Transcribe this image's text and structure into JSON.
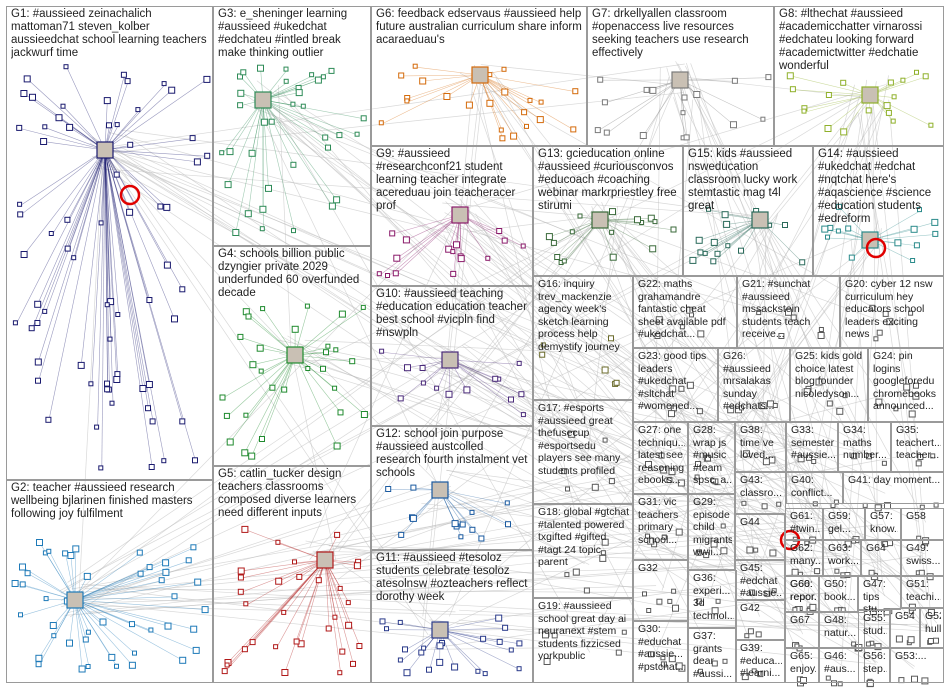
{
  "groups": [
    {
      "id": "G1",
      "label": "G1: #aussieed zeinachalich mattoman71 steven_kolber aussieedchat school learning teachers jackwurf time",
      "color": "#1a1a6e",
      "box": "g1"
    },
    {
      "id": "G2",
      "label": "G2: teacher #aussieed research wellbeing bjlarinen finished masters following joy fulfilment",
      "color": "#1e7ab8",
      "box": "g2"
    },
    {
      "id": "G3",
      "label": "G3: e_sheninger learning #aussieed #ukedchat #edchateu #intled break make thinking outlier",
      "color": "#2e8b57",
      "box": "g3"
    },
    {
      "id": "G4",
      "label": "G4: schools billion public dzyngier private 2029 underfunded 60 overfunded decade",
      "color": "#1f8a2e",
      "box": "g4"
    },
    {
      "id": "G5",
      "label": "G5: catlin_tucker design teachers classrooms composed diverse learners need different inputs",
      "color": "#b01818",
      "box": "g5"
    },
    {
      "id": "G6",
      "label": "G6: feedback edservaus #aussieed help future australian curriculum share inform acaraeduau's",
      "color": "#d46a0a",
      "box": "g6"
    },
    {
      "id": "G7",
      "label": "G7: drkellyallen classroom #openaccess live resources seeking teachers use research effectively",
      "color": "#7a7a7a",
      "box": "g7"
    },
    {
      "id": "G8",
      "label": "G8: #lthechat #aussieed #academicchatter virnarossi #edchateu looking forward #academictwitter #edchatie wonderful",
      "color": "#8fb02a",
      "box": "g8"
    },
    {
      "id": "G9",
      "label": "G9: #aussieed #researchconf21 student learning teacher integrate acereduau join teacheracer prof",
      "color": "#8a1a6a",
      "box": "g9"
    },
    {
      "id": "G10",
      "label": "G10: #aussieed teaching #education education teacher best school #vicpln find #nswpln",
      "color": "#4a2a7a",
      "box": "g10"
    },
    {
      "id": "G11",
      "label": "G11: #aussieed #tesoloz students celebrate tesoloz atesolnsw #ozteachers reflect dorothy week",
      "color": "#2a3a8a",
      "box": "g11"
    },
    {
      "id": "G12",
      "label": "G12: school join purpose #aussieed austcolled research fourth instalment vet schools",
      "color": "#1a5aa0",
      "box": "g12"
    },
    {
      "id": "G13",
      "label": "G13: gcieducation online #aussieed #curiousconvos #educoach #coaching webinar markrpriestley free stirumi",
      "color": "#3a6a3a",
      "box": "g13"
    },
    {
      "id": "G14",
      "label": "G14: #aussieed #ukedchat #edchat #nqtchat here's #aqascience #science #education students #edreform",
      "color": "#2a8a8a",
      "box": "g14"
    },
    {
      "id": "G15",
      "label": "G15: kids #aussieed nsweducation classroom lucky work stemtastic mag t4l great",
      "color": "#2a6a5a",
      "box": "g15"
    },
    {
      "id": "G16",
      "label": "G16: inquiry trev_mackenzie agency week's sketch learning process help demystify journey",
      "color": "#6a6a2a",
      "box": "g16"
    },
    {
      "id": "G17",
      "label": "G17: #esports #aussieed great thefusecup #esportsedu players see many students profiled",
      "color": "#5a5a5a",
      "box": "g17"
    },
    {
      "id": "G18",
      "label": "G18: global #gtchat #talented powered txgifted #gifted #tagt 24 topic parent",
      "color": "#5a5a5a",
      "box": "g18"
    },
    {
      "id": "G19",
      "label": "G19: #aussieed school great day ai neuranext #stem students fizzicsed yorkpublic",
      "color": "#5a5a5a",
      "box": "g19"
    },
    {
      "id": "G20",
      "label": "G20: cyber 12 nsw curriculum hey educators school leaders exciting news",
      "color": "#5a5a5a",
      "box": "g20"
    },
    {
      "id": "G21",
      "label": "G21: #sunchat #aussieed mssackstein students teach receive...",
      "color": "#5a5a5a",
      "box": "g21"
    },
    {
      "id": "G22",
      "label": "G22: maths grahamandre fantastic cheat sheet available pdf #ukedchat...",
      "color": "#5a5a5a",
      "box": "g22"
    },
    {
      "id": "G23",
      "label": "G23: good tips leaders #ukedchat #sltchat #womened...",
      "color": "#5a5a5a",
      "box": "g23"
    },
    {
      "id": "G24",
      "label": "G24: pin logins googleforedu chromebooks announced...",
      "color": "#5a5a5a",
      "box": "g24"
    },
    {
      "id": "G25",
      "label": "G25: kids gold choice latest blog founder nicoledyson...",
      "color": "#5a5a5a",
      "box": "g25"
    },
    {
      "id": "G26",
      "label": "G26: #aussieed mrsalakas sunday #edchats...",
      "color": "#5a5a5a",
      "box": "g26"
    },
    {
      "id": "G27",
      "label": "G27: one techniqu... latest see reasoning ebooks...",
      "color": "#5a5a5a",
      "box": "g27"
    },
    {
      "id": "G28",
      "label": "G28: wrap js #music #team spsc_a...",
      "color": "#5a5a5a",
      "box": "g28"
    },
    {
      "id": "G29",
      "label": "G29: episode child migrants wwii...",
      "color": "#5a5a5a",
      "box": "g29"
    },
    {
      "id": "G30",
      "label": "G30: #educhat #aussie... #pstchat...",
      "color": "#5a5a5a",
      "box": "g30"
    },
    {
      "id": "G31",
      "label": "G31: vic teachers primary school...",
      "color": "#5a5a5a",
      "box": "g31"
    },
    {
      "id": "G32",
      "label": "G32",
      "color": "#5a5a5a",
      "box": "g32"
    },
    {
      "id": "G33",
      "label": "G33: semester #aussie...",
      "color": "#5a5a5a",
      "box": "g33"
    },
    {
      "id": "G34",
      "label": "G34: maths number...",
      "color": "#5a5a5a",
      "box": "g34"
    },
    {
      "id": "G35",
      "label": "G35: teachert... teacher...",
      "color": "#5a5a5a",
      "box": "g35"
    },
    {
      "id": "G36",
      "label": "G36: experi... 3d technol...",
      "color": "#5a5a5a",
      "box": "g36"
    },
    {
      "id": "G37",
      "label": "G37: grants dear #aussi...",
      "color": "#5a5a5a",
      "box": "g37"
    },
    {
      "id": "G38",
      "label": "G38: time ve loved...",
      "color": "#5a5a5a",
      "box": "g38"
    },
    {
      "id": "G39",
      "label": "G39: #educa... #learni...",
      "color": "#5a5a5a",
      "box": "g39"
    },
    {
      "id": "G40",
      "label": "G40: conflict...",
      "color": "#5a5a5a",
      "box": "g40"
    },
    {
      "id": "G41",
      "label": "G41: day moment...",
      "color": "#5a5a5a",
      "box": "g41"
    },
    {
      "id": "G42",
      "label": "G42",
      "color": "#5a5a5a",
      "box": "g42"
    },
    {
      "id": "G43",
      "label": "G43: classro...",
      "color": "#5a5a5a",
      "box": "g43"
    },
    {
      "id": "G44",
      "label": "G44",
      "color": "#5a5a5a",
      "box": "g44"
    },
    {
      "id": "G45",
      "label": "G45: #edchat #aussie...",
      "color": "#5a5a5a",
      "box": "g45"
    },
    {
      "id": "G46",
      "label": "G46: #aus...",
      "color": "#5a5a5a",
      "box": "g46"
    },
    {
      "id": "G47",
      "label": "G47: tips stu...",
      "color": "#5a5a5a",
      "box": "g47"
    },
    {
      "id": "G48",
      "label": "G48: natur...",
      "color": "#5a5a5a",
      "box": "g48"
    },
    {
      "id": "G49",
      "label": "G49: swiss...",
      "color": "#5a5a5a",
      "box": "g49"
    },
    {
      "id": "G50",
      "label": "G50: book...",
      "color": "#5a5a5a",
      "box": "g50"
    },
    {
      "id": "G51",
      "label": "G51: teachi...",
      "color": "#5a5a5a",
      "box": "g51"
    },
    {
      "id": "G52",
      "label": "G52: hullo...",
      "color": "#5a5a5a",
      "box": "g52"
    },
    {
      "id": "G53",
      "label": "G53:...",
      "color": "#5a5a5a",
      "box": "g53"
    },
    {
      "id": "G54",
      "label": "G54",
      "color": "#5a5a5a",
      "box": "g54"
    },
    {
      "id": "G55",
      "label": "G55: stud...",
      "color": "#5a5a5a",
      "box": "g55"
    },
    {
      "id": "G56",
      "label": "G56: step...",
      "color": "#5a5a5a",
      "box": "g56"
    },
    {
      "id": "G57",
      "label": "G57: know...",
      "color": "#5a5a5a",
      "box": "g57"
    },
    {
      "id": "G58",
      "label": "G58",
      "color": "#5a5a5a",
      "box": "g58"
    },
    {
      "id": "G59",
      "label": "G59: gel...",
      "color": "#5a5a5a",
      "box": "g59"
    },
    {
      "id": "G60",
      "label": "G60: repor...",
      "color": "#5a5a5a",
      "box": "g60"
    },
    {
      "id": "G61",
      "label": "G61: #twin...",
      "color": "#5a5a5a",
      "box": "g61"
    },
    {
      "id": "G62",
      "label": "G62: many...",
      "color": "#5a5a5a",
      "box": "g62"
    },
    {
      "id": "G63",
      "label": "G63: work...",
      "color": "#5a5a5a",
      "box": "g63"
    },
    {
      "id": "G64",
      "label": "G64",
      "color": "#5a5a5a",
      "box": "g64"
    },
    {
      "id": "G65",
      "label": "G65: enjoy...",
      "color": "#5a5a5a",
      "box": "g65"
    },
    {
      "id": "G66",
      "label": "G66: repor...",
      "color": "#5a5a5a",
      "box": "g66"
    },
    {
      "id": "G67",
      "label": "G67",
      "color": "#5a5a5a",
      "box": "g67"
    }
  ],
  "colors": {
    "edge": "#b9b9b9",
    "box_border": "#9a9a9a",
    "accent_red": "#e00000"
  }
}
